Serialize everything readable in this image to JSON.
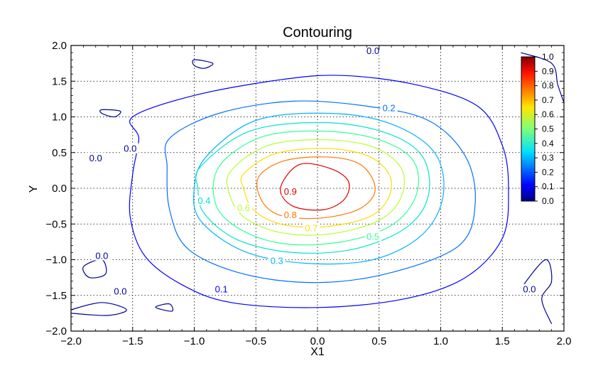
{
  "chart_data": {
    "type": "contour",
    "title": "Contouring",
    "xlabel": "X1",
    "ylabel": "Y",
    "xlim": [
      -2.0,
      2.0
    ],
    "ylim": [
      -2.0,
      2.0
    ],
    "grid": true,
    "x_ticks": [
      "-2.0",
      "-1.5",
      "-1.0",
      "-0.5",
      "0.0",
      "0.5",
      "1.0",
      "1.5",
      "2.0"
    ],
    "y_ticks": [
      "2.0",
      "1.5",
      "1.0",
      "0.5",
      "0.0",
      "-0.5",
      "-1.0",
      "-1.5",
      "-2.0"
    ],
    "x_tick_values": [
      -2.0,
      -1.5,
      -1.0,
      -0.5,
      0.0,
      0.5,
      1.0,
      1.5,
      2.0
    ],
    "y_tick_values": [
      2.0,
      1.5,
      1.0,
      0.5,
      0.0,
      -0.5,
      -1.0,
      -1.5,
      -2.0
    ],
    "colorbar": {
      "min": 0.0,
      "max": 1.0,
      "colormap": "jet",
      "tick_values": [
        1.0,
        0.9,
        0.8,
        0.7,
        0.6,
        0.5,
        0.4,
        0.3,
        0.2,
        0.1,
        0.0
      ],
      "tick_labels": [
        "1.0",
        "0.9",
        "0.8",
        "0.7",
        "0.6",
        "0.5",
        "0.4",
        "0.3",
        "0.2",
        "0.1",
        "0.0"
      ],
      "placement": "top-right inside plot"
    },
    "contours": [
      {
        "level": 0.1,
        "label": "0.1",
        "color": "#0000ff",
        "points": [
          [
            -1.5,
            1.0
          ],
          [
            -1.0,
            1.3
          ],
          [
            -0.3,
            1.52
          ],
          [
            0.2,
            1.58
          ],
          [
            0.8,
            1.45
          ],
          [
            1.3,
            1.15
          ],
          [
            1.5,
            0.6
          ],
          [
            1.55,
            0.0
          ],
          [
            1.5,
            -0.7
          ],
          [
            1.2,
            -1.25
          ],
          [
            0.7,
            -1.55
          ],
          [
            0.0,
            -1.67
          ],
          [
            -0.7,
            -1.6
          ],
          [
            -1.1,
            -1.35
          ],
          [
            -1.4,
            -0.95
          ],
          [
            -1.52,
            -0.4
          ],
          [
            -1.5,
            0.2
          ],
          [
            -1.45,
            0.7
          ],
          [
            -1.5,
            1.0
          ]
        ],
        "label_at": [
          -0.78,
          -1.42
        ]
      },
      {
        "level": 0.2,
        "label": "0.2",
        "color": "#0070ff",
        "points": [
          [
            -1.2,
            0.7
          ],
          [
            -0.8,
            1.05
          ],
          [
            -0.2,
            1.22
          ],
          [
            0.4,
            1.15
          ],
          [
            0.9,
            0.95
          ],
          [
            1.2,
            0.45
          ],
          [
            1.28,
            -0.2
          ],
          [
            1.15,
            -0.8
          ],
          [
            0.6,
            -1.18
          ],
          [
            0.0,
            -1.32
          ],
          [
            -0.6,
            -1.2
          ],
          [
            -1.05,
            -0.85
          ],
          [
            -1.2,
            -0.3
          ],
          [
            -1.22,
            0.3
          ],
          [
            -1.2,
            0.7
          ]
        ],
        "label_at": [
          0.58,
          1.12
        ]
      },
      {
        "level": 0.3,
        "label": "0.3",
        "color": "#00b4ff",
        "points": [
          [
            -0.9,
            0.45
          ],
          [
            -0.5,
            0.95
          ],
          [
            0.1,
            1.05
          ],
          [
            0.6,
            0.9
          ],
          [
            0.95,
            0.5
          ],
          [
            1.02,
            -0.1
          ],
          [
            0.85,
            -0.65
          ],
          [
            0.45,
            -1.0
          ],
          [
            -0.1,
            -1.05
          ],
          [
            -0.6,
            -0.88
          ],
          [
            -0.95,
            -0.45
          ],
          [
            -1.0,
            0.0
          ],
          [
            -0.9,
            0.45
          ]
        ],
        "label_at": [
          -0.33,
          -1.02
        ]
      },
      {
        "level": 0.4,
        "label": "0.4",
        "color": "#00e6c8",
        "points": [
          [
            -0.95,
            0.3
          ],
          [
            -0.55,
            0.8
          ],
          [
            0.05,
            0.92
          ],
          [
            0.55,
            0.78
          ],
          [
            0.85,
            0.45
          ],
          [
            0.9,
            -0.1
          ],
          [
            0.72,
            -0.55
          ],
          [
            0.3,
            -0.85
          ],
          [
            -0.2,
            -0.9
          ],
          [
            -0.65,
            -0.72
          ],
          [
            -0.92,
            -0.35
          ],
          [
            -0.97,
            0.0
          ],
          [
            -0.95,
            0.3
          ]
        ],
        "label_at": [
          -0.92,
          -0.18
        ]
      },
      {
        "level": 0.5,
        "label": "0.5",
        "color": "#32ff96",
        "points": [
          [
            -0.8,
            0.3
          ],
          [
            -0.45,
            0.72
          ],
          [
            0.05,
            0.8
          ],
          [
            0.5,
            0.68
          ],
          [
            0.78,
            0.38
          ],
          [
            0.8,
            -0.1
          ],
          [
            0.6,
            -0.52
          ],
          [
            0.2,
            -0.75
          ],
          [
            -0.25,
            -0.78
          ],
          [
            -0.6,
            -0.6
          ],
          [
            -0.82,
            -0.25
          ],
          [
            -0.8,
            0.3
          ]
        ],
        "label_at": [
          0.45,
          -0.68
        ]
      },
      {
        "level": 0.6,
        "label": "0.6",
        "color": "#b4ff32",
        "points": [
          [
            -0.7,
            0.25
          ],
          [
            -0.4,
            0.6
          ],
          [
            0.05,
            0.68
          ],
          [
            0.45,
            0.58
          ],
          [
            0.68,
            0.28
          ],
          [
            0.68,
            -0.12
          ],
          [
            0.5,
            -0.45
          ],
          [
            0.1,
            -0.64
          ],
          [
            -0.3,
            -0.62
          ],
          [
            -0.6,
            -0.4
          ],
          [
            -0.72,
            -0.05
          ],
          [
            -0.7,
            0.25
          ]
        ],
        "label_at": [
          -0.6,
          -0.28
        ]
      },
      {
        "level": 0.7,
        "label": "0.7",
        "color": "#ffdc00",
        "points": [
          [
            -0.6,
            0.2
          ],
          [
            -0.35,
            0.48
          ],
          [
            0.05,
            0.56
          ],
          [
            0.4,
            0.46
          ],
          [
            0.58,
            0.2
          ],
          [
            0.58,
            -0.12
          ],
          [
            0.42,
            -0.4
          ],
          [
            0.05,
            -0.54
          ],
          [
            -0.3,
            -0.5
          ],
          [
            -0.52,
            -0.3
          ],
          [
            -0.6,
            0.0
          ],
          [
            -0.6,
            0.2
          ]
        ],
        "label_at": [
          -0.05,
          -0.56
        ]
      },
      {
        "level": 0.8,
        "label": "0.8",
        "color": "#ff7800",
        "points": [
          [
            -0.48,
            0.15
          ],
          [
            -0.28,
            0.38
          ],
          [
            0.05,
            0.44
          ],
          [
            0.32,
            0.36
          ],
          [
            0.45,
            0.12
          ],
          [
            0.45,
            -0.12
          ],
          [
            0.3,
            -0.32
          ],
          [
            0.0,
            -0.42
          ],
          [
            -0.3,
            -0.38
          ],
          [
            -0.45,
            -0.18
          ],
          [
            -0.48,
            0.15
          ]
        ],
        "label_at": [
          -0.22,
          -0.38
        ]
      },
      {
        "level": 0.9,
        "label": "0.9",
        "color": "#dc0000",
        "points": [
          [
            -0.3,
            0.0
          ],
          [
            -0.15,
            0.33
          ],
          [
            0.1,
            0.28
          ],
          [
            0.25,
            0.1
          ],
          [
            0.22,
            -0.15
          ],
          [
            0.05,
            -0.3
          ],
          [
            -0.2,
            -0.25
          ],
          [
            -0.3,
            0.0
          ]
        ],
        "label_at": [
          -0.22,
          -0.05
        ]
      },
      {
        "level": 0.0,
        "label": "0.0",
        "color": "#000096",
        "points": [
          [
            1.65,
            1.9
          ],
          [
            1.9,
            1.75
          ],
          [
            1.95,
            1.45
          ],
          [
            2.0,
            1.2
          ]
        ],
        "label_at": [
          0.45,
          1.92
        ]
      }
    ],
    "zero_level_labels": [
      {
        "label": "0.0",
        "label_at": [
          -1.52,
          0.55
        ]
      },
      {
        "label": "0.0",
        "label_at": [
          -1.8,
          0.42
        ]
      },
      {
        "label": "0.0",
        "label_at": [
          -1.75,
          -0.95
        ]
      },
      {
        "label": "0.0",
        "label_at": [
          -1.6,
          -1.45
        ]
      },
      {
        "label": "0.0",
        "label_at": [
          1.72,
          -1.42
        ]
      }
    ],
    "zero_level_islands": [
      [
        [
          -1.0,
          1.8
        ],
        [
          -0.85,
          1.75
        ],
        [
          -0.92,
          1.68
        ],
        [
          -1.0,
          1.72
        ],
        [
          -1.0,
          1.8
        ]
      ],
      [
        [
          -1.75,
          1.1
        ],
        [
          -1.6,
          1.08
        ],
        [
          -1.65,
          1.0
        ],
        [
          -1.75,
          1.05
        ],
        [
          -1.75,
          1.1
        ]
      ],
      [
        [
          -1.9,
          -1.1
        ],
        [
          -1.75,
          -1.0
        ],
        [
          -1.72,
          -1.2
        ],
        [
          -1.85,
          -1.25
        ],
        [
          -1.9,
          -1.1
        ]
      ],
      [
        [
          -2.0,
          -1.7
        ],
        [
          -1.75,
          -1.6
        ],
        [
          -1.55,
          -1.7
        ],
        [
          -1.7,
          -1.78
        ],
        [
          -2.0,
          -1.75
        ]
      ],
      [
        [
          -1.3,
          -1.65
        ],
        [
          -1.2,
          -1.62
        ],
        [
          -1.18,
          -1.72
        ],
        [
          -1.3,
          -1.68
        ],
        [
          -1.3,
          -1.65
        ]
      ],
      [
        [
          1.65,
          -1.4
        ],
        [
          1.85,
          -1.0
        ],
        [
          1.9,
          -1.3
        ],
        [
          1.82,
          -1.55
        ],
        [
          1.9,
          -1.9
        ]
      ]
    ]
  }
}
